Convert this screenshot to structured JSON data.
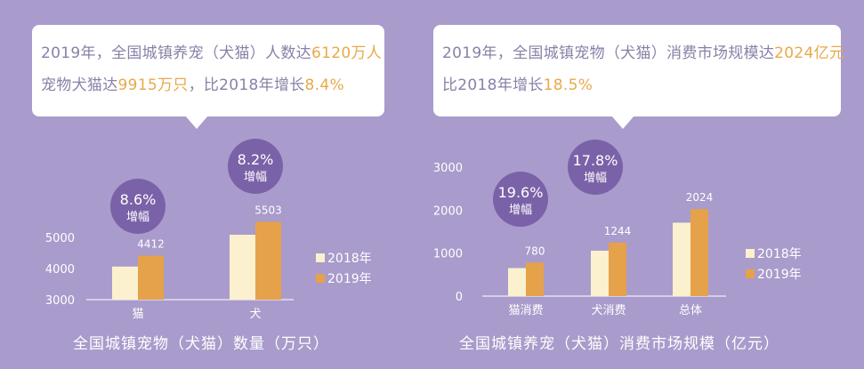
{
  "colors": {
    "background": "#a99bcb",
    "bar_2018": "#fbf1cf",
    "bar_2019": "#e5a24a",
    "badge": "#7a62a8",
    "highlight": "#e8a94a",
    "text": "#8a80a8"
  },
  "callouts": [
    {
      "lines": [
        [
          {
            "t": "2019年，全国城镇养宠（犬猫）人数达",
            "h": false
          },
          {
            "t": "6120万人",
            "h": true
          }
        ],
        [
          {
            "t": "宠物犬猫达",
            "h": false
          },
          {
            "t": "9915万只",
            "h": true
          },
          {
            "t": "，比2018年增长",
            "h": false
          },
          {
            "t": "8.4%",
            "h": true
          }
        ]
      ]
    },
    {
      "lines": [
        [
          {
            "t": "2019年，全国城镇宠物（犬猫）消费市场规模达",
            "h": false
          },
          {
            "t": "2024亿元",
            "h": true
          }
        ],
        [
          {
            "t": "比2018年增长",
            "h": false
          },
          {
            "t": "18.5%",
            "h": true
          }
        ]
      ]
    }
  ],
  "chart_data": [
    {
      "type": "bar",
      "title": "全国城镇宠物（犬猫）数量（万只）",
      "categories": [
        "猫",
        "犬"
      ],
      "series": [
        {
          "name": "2018年",
          "values": [
            4063,
            5086
          ]
        },
        {
          "name": "2019年",
          "values": [
            4412,
            5503
          ]
        }
      ],
      "data_labels": [
        "4412",
        "5503"
      ],
      "growth_badges": [
        {
          "value": "8.6%",
          "label": "增幅"
        },
        {
          "value": "8.2%",
          "label": "增幅"
        }
      ],
      "yticks": [
        "3000",
        "4000",
        "5000"
      ],
      "ylim": [
        3000,
        5800
      ],
      "grid": false,
      "legend": "right"
    },
    {
      "type": "bar",
      "title": "全国城镇养宠（犬猫）消费市场规模（亿元）",
      "categories": [
        "猫消费",
        "犬消费",
        "总体"
      ],
      "series": [
        {
          "name": "2018年",
          "values": [
            652,
            1056,
            1708
          ]
        },
        {
          "name": "2019年",
          "values": [
            780,
            1244,
            2024
          ]
        }
      ],
      "data_labels": [
        "780",
        "1244",
        "2024"
      ],
      "growth_badges": [
        {
          "value": "19.6%",
          "label": "增幅"
        },
        {
          "value": "17.8%",
          "label": "增幅"
        }
      ],
      "yticks": [
        "0",
        "1000",
        "2000",
        "3000"
      ],
      "ylim": [
        0,
        3000
      ],
      "grid": false,
      "legend": "right"
    }
  ]
}
